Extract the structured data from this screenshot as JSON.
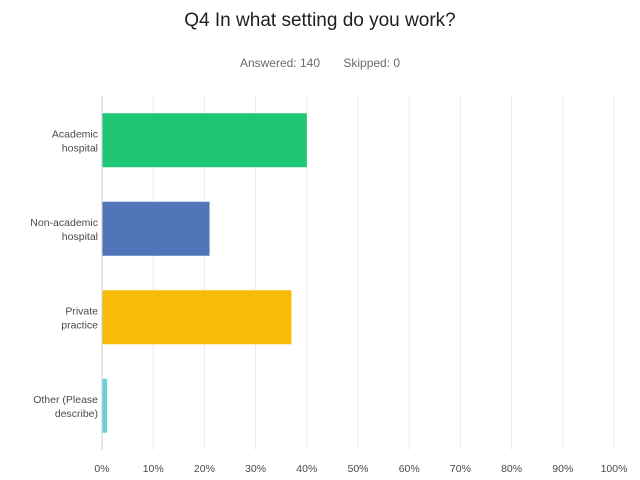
{
  "question": {
    "title": "Q4 In what setting do you work?",
    "answered_label": "Answered: 140",
    "skipped_label": "Skipped: 0"
  },
  "chart_data": {
    "type": "bar",
    "orientation": "horizontal",
    "title": "Q4 In what setting do you work?",
    "categories": [
      [
        "Academic",
        "hospital"
      ],
      [
        "Non-academic",
        "hospital"
      ],
      [
        "Private",
        "practice"
      ],
      [
        "Other (Please",
        "describe)"
      ]
    ],
    "values": [
      40,
      21,
      37,
      1
    ],
    "colors": [
      "#1ec675",
      "#5076b9",
      "#f7bb0a",
      "#6bcfd8"
    ],
    "xlim": [
      0,
      100
    ],
    "x_ticks": [
      "0%",
      "10%",
      "20%",
      "30%",
      "40%",
      "50%",
      "60%",
      "70%",
      "80%",
      "90%",
      "100%"
    ],
    "grid": true,
    "xlabel": "",
    "ylabel": ""
  }
}
